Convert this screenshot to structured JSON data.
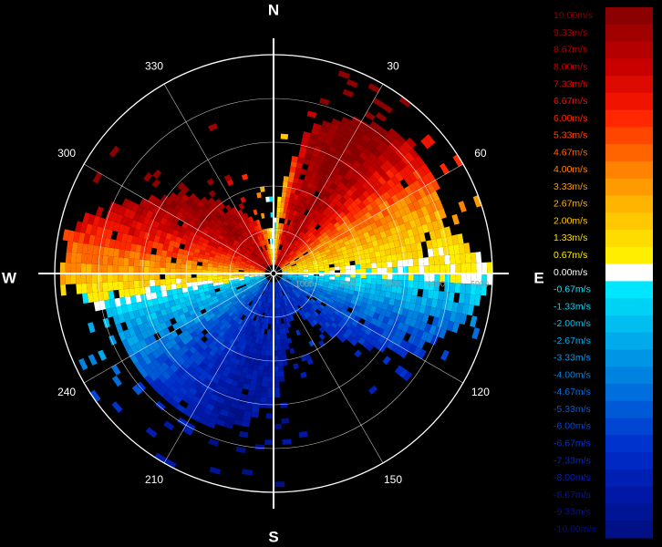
{
  "chart_data": {
    "type": "heatmap",
    "subtype": "polar-radial-velocity-ppi",
    "cardinal_labels": [
      "N",
      "E",
      "S",
      "W"
    ],
    "azimuth_labels": [
      "30",
      "60",
      "120",
      "150",
      "210",
      "240",
      "300",
      "330"
    ],
    "range_ticks": [
      1000,
      2000,
      3000,
      4000,
      5000
    ],
    "range_labels": [
      "1000",
      "2000",
      "3000",
      "4000",
      "5000"
    ],
    "range_max": 5000,
    "grid": true,
    "legend_position": "right",
    "colorbar_labels": [
      "10.00m/s",
      "9.33m/s",
      "8.67m/s",
      "8.00m/s",
      "7.33m/s",
      "6.67m/s",
      "6.00m/s",
      "5.33m/s",
      "4.67m/s",
      "4.00m/s",
      "3.33m/s",
      "2.67m/s",
      "2.00m/s",
      "1.33m/s",
      "0.67m/s",
      "0.00m/s",
      "-0.67m/s",
      "-1.33m/s",
      "-2.00m/s",
      "-2.67m/s",
      "-3.33m/s",
      "-4.00m/s",
      "-4.67m/s",
      "-5.33m/s",
      "-6.00m/s",
      "-6.67m/s",
      "-7.33m/s",
      "-8.00m/s",
      "-8.67m/s",
      "-9.33m/s",
      "-10.00m/s"
    ],
    "colorbar_colors": [
      "#8b0000",
      "#a00000",
      "#b40000",
      "#c80000",
      "#dc0a00",
      "#f01400",
      "#ff2800",
      "#ff4600",
      "#ff6400",
      "#ff8200",
      "#ff9b00",
      "#ffb400",
      "#ffc800",
      "#ffdc00",
      "#ffee00",
      "#ffffff",
      "#00e6ff",
      "#00d2f5",
      "#00bef0",
      "#00aaeb",
      "#0096e6",
      "#0082e1",
      "#006edc",
      "#005ad7",
      "#0046d2",
      "#0032cd",
      "#0028c3",
      "#0020b4",
      "#0018a5",
      "#001496",
      "#001087"
    ],
    "velocity_min": -10,
    "velocity_max": 10,
    "velocity_by_azimuth": [
      {
        "az": 0,
        "v": -1,
        "max_range": 1000
      },
      {
        "az": 15,
        "v": 7,
        "max_range": 3400
      },
      {
        "az": 30,
        "v": 8,
        "max_range": 4000
      },
      {
        "az": 45,
        "v": 6,
        "max_range": 4300
      },
      {
        "az": 60,
        "v": 3.5,
        "max_range": 4200
      },
      {
        "az": 75,
        "v": 1.5,
        "max_range": 4000
      },
      {
        "az": 90,
        "v": 0,
        "max_range": 5000
      },
      {
        "az": 105,
        "v": -3,
        "max_range": 4400
      },
      {
        "az": 120,
        "v": -5,
        "max_range": 3500
      },
      {
        "az": 135,
        "v": -6,
        "max_range": 2000
      },
      {
        "az": 150,
        "v": -6,
        "max_range": 900
      },
      {
        "az": 165,
        "v": -7,
        "max_range": 1200
      },
      {
        "az": 180,
        "v": -7,
        "max_range": 3000
      },
      {
        "az": 195,
        "v": -7,
        "max_range": 3600
      },
      {
        "az": 210,
        "v": -6,
        "max_range": 3800
      },
      {
        "az": 225,
        "v": -5,
        "max_range": 3800
      },
      {
        "az": 240,
        "v": -3,
        "max_range": 3800
      },
      {
        "az": 255,
        "v": -1.5,
        "max_range": 3800
      },
      {
        "az": 270,
        "v": 2,
        "max_range": 4800
      },
      {
        "az": 285,
        "v": 5,
        "max_range": 4600
      },
      {
        "az": 300,
        "v": 7,
        "max_range": 3300
      },
      {
        "az": 315,
        "v": 8,
        "max_range": 2500
      },
      {
        "az": 330,
        "v": 7.5,
        "max_range": 1600
      },
      {
        "az": 345,
        "v": 5,
        "max_range": 1000
      }
    ]
  }
}
